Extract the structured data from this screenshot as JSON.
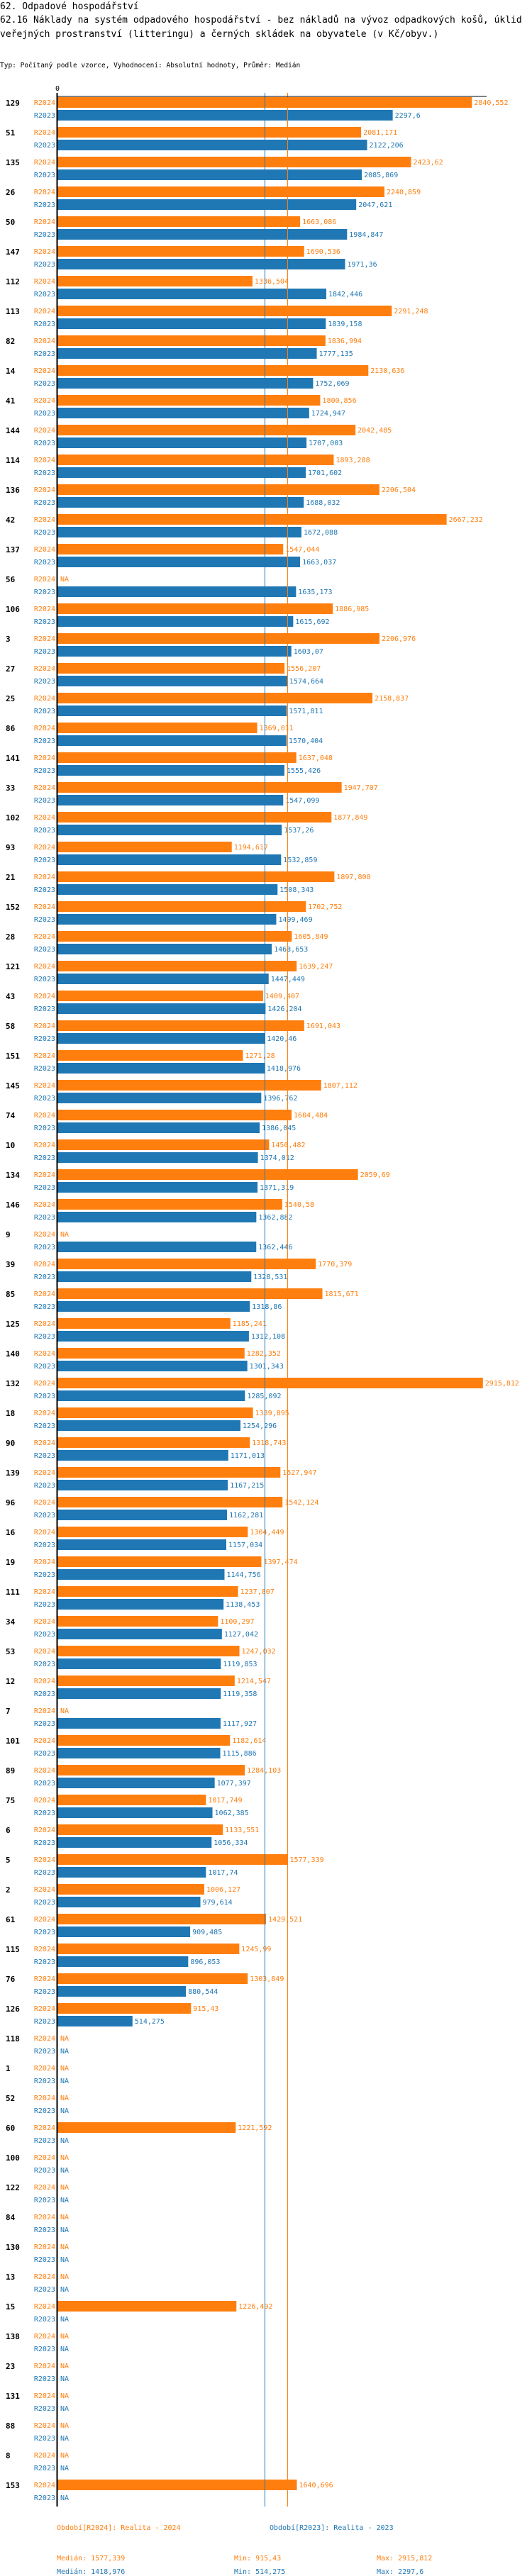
{
  "header": {
    "section": "62. Odpadové hospodářství",
    "title": "62.16 Náklady na systém odpadového hospodářství - bez nákladů na vývoz odpadkových košů, úklid veřejných prostranství (litteringu) a černých skládek na obyvatele (v Kč/obyv.)",
    "subtitle": "Typ: Počítaný podle vzorce, Vyhodnocení: Absolutní hodnoty, Průměr: Medián"
  },
  "colors": {
    "R2024": "#ff7f0e",
    "R2023": "#1f77b4",
    "axis": "#000000"
  },
  "chart_data": {
    "type": "bar",
    "orientation": "horizontal",
    "title": "62.16 Náklady na systém odpadového hospodářství - bez nákladů na vývoz odpadkových košů, úklid veřejných prostranství (litteringu) a černých skládek na obyvatele (v Kč/obyv.)",
    "xlabel": "",
    "ylabel": "",
    "axis_zero_label": "0",
    "xlim": [
      0,
      2915.812
    ],
    "grid": false,
    "na_label": "NA",
    "series_names": [
      "R2024",
      "R2023"
    ],
    "categories": [
      "129",
      "51",
      "135",
      "26",
      "50",
      "147",
      "112",
      "113",
      "82",
      "14",
      "41",
      "144",
      "114",
      "136",
      "42",
      "137",
      "56",
      "106",
      "3",
      "27",
      "25",
      "86",
      "141",
      "33",
      "102",
      "93",
      "21",
      "152",
      "28",
      "121",
      "43",
      "58",
      "151",
      "145",
      "74",
      "10",
      "134",
      "146",
      "9",
      "39",
      "85",
      "125",
      "140",
      "132",
      "18",
      "90",
      "139",
      "96",
      "16",
      "19",
      "111",
      "34",
      "53",
      "12",
      "7",
      "101",
      "89",
      "75",
      "6",
      "5",
      "2",
      "61",
      "115",
      "76",
      "126",
      "118",
      "1",
      "52",
      "60",
      "100",
      "122",
      "84",
      "130",
      "13",
      "15",
      "138",
      "23",
      "131",
      "88",
      "8",
      "153"
    ],
    "series": [
      {
        "name": "R2024",
        "values": [
          2840.552,
          2081.171,
          2423.62,
          2240.859,
          1663.086,
          1690.536,
          1336.504,
          2291.248,
          1836.994,
          2130.636,
          1800.856,
          2042.485,
          1893.288,
          2206.504,
          2667.232,
          1547.044,
          null,
          1886.985,
          2206.976,
          1556.207,
          2158.837,
          1369.011,
          1637.048,
          1947.707,
          1877.849,
          1194.617,
          1897.808,
          1702.752,
          1605.849,
          1639.247,
          1409.407,
          1691.043,
          1271.28,
          1807.112,
          1604.484,
          1450.482,
          2059.69,
          1540.58,
          null,
          1770.379,
          1815.671,
          1185.241,
          1282.352,
          2915.812,
          1339.895,
          1318.743,
          1527.947,
          1542.124,
          1304.449,
          1397.474,
          1237.807,
          1100.297,
          1247.032,
          1214.547,
          null,
          1182.614,
          1284.103,
          1017.749,
          1133.551,
          1577.339,
          1006.127,
          1429.521,
          1245.99,
          1303.849,
          915.43,
          null,
          null,
          null,
          1221.592,
          null,
          null,
          null,
          null,
          null,
          1226.492,
          null,
          null,
          null,
          null,
          null,
          1640.696
        ]
      },
      {
        "name": "R2023",
        "values": [
          2297.6,
          2122.206,
          2085.869,
          2047.621,
          1984.847,
          1971.36,
          1842.446,
          1839.158,
          1777.135,
          1752.069,
          1724.947,
          1707.003,
          1701.602,
          1688.032,
          1672.088,
          1663.037,
          1635.173,
          1615.692,
          1603.07,
          1574.664,
          1571.811,
          1570.404,
          1555.426,
          1547.099,
          1537.26,
          1532.859,
          1508.343,
          1499.469,
          1468.653,
          1447.449,
          1426.204,
          1420.46,
          1418.976,
          1396.762,
          1386.045,
          1374.012,
          1371.319,
          1362.882,
          1362.446,
          1328.531,
          1318.86,
          1312.108,
          1301.343,
          1285.092,
          1254.296,
          1171.013,
          1167.215,
          1162.281,
          1157.034,
          1144.756,
          1138.453,
          1127.042,
          1119.853,
          1119.358,
          1117.927,
          1115.886,
          1077.397,
          1062.385,
          1056.334,
          1017.74,
          979.614,
          909.485,
          896.053,
          880.544,
          514.275,
          null,
          null,
          null,
          null,
          null,
          null,
          null,
          null,
          null,
          null,
          null,
          null,
          null,
          null,
          null,
          null
        ]
      }
    ],
    "value_labels": {
      "R2024": [
        "2840,552",
        "2081,171",
        "2423,62",
        "2240,859",
        "1663,086",
        "1690,536",
        "1336,504",
        "2291,248",
        "1836,994",
        "2130,636",
        "1800,856",
        "2042,485",
        "1893,288",
        "2206,504",
        "2667,232",
        "1547,044",
        "NA",
        "1886,985",
        "2206,976",
        "1556,207",
        "2158,837",
        "1369,011",
        "1637,048",
        "1947,707",
        "1877,849",
        "1194,617",
        "1897,808",
        "1702,752",
        "1605,849",
        "1639,247",
        "1409,407",
        "1691,043",
        "1271,28",
        "1807,112",
        "1604,484",
        "1450,482",
        "2059,69",
        "1540,58",
        "NA",
        "1770,379",
        "1815,671",
        "1185,241",
        "1282,352",
        "2915,812",
        "1339,895",
        "1318,743",
        "1527,947",
        "1542,124",
        "1304,449",
        "1397,474",
        "1237,807",
        "1100,297",
        "1247,032",
        "1214,547",
        "NA",
        "1182,614",
        "1284,103",
        "1017,749",
        "1133,551",
        "1577,339",
        "1006,127",
        "1429,521",
        "1245,99",
        "1303,849",
        "915,43",
        "NA",
        "NA",
        "NA",
        "1221,592",
        "NA",
        "NA",
        "NA",
        "NA",
        "NA",
        "1226,492",
        "NA",
        "NA",
        "NA",
        "NA",
        "NA",
        "1640,696"
      ],
      "R2023": [
        "2297,6",
        "2122,206",
        "2085,869",
        "2047,621",
        "1984,847",
        "1971,36",
        "1842,446",
        "1839,158",
        "1777,135",
        "1752,069",
        "1724,947",
        "1707,003",
        "1701,602",
        "1688,032",
        "1672,088",
        "1663,037",
        "1635,173",
        "1615,692",
        "1603,07",
        "1574,664",
        "1571,811",
        "1570,404",
        "1555,426",
        "1547,099",
        "1537,26",
        "1532,859",
        "1508,343",
        "1499,469",
        "1468,653",
        "1447,449",
        "1426,204",
        "1420,46",
        "1418,976",
        "1396,762",
        "1386,045",
        "1374,012",
        "1371,319",
        "1362,882",
        "1362,446",
        "1328,531",
        "1318,86",
        "1312,108",
        "1301,343",
        "1285,092",
        "1254,296",
        "1171,013",
        "1167,215",
        "1162,281",
        "1157,034",
        "1144,756",
        "1138,453",
        "1127,042",
        "1119,853",
        "1119,358",
        "1117,927",
        "1115,886",
        "1077,397",
        "1062,385",
        "1056,334",
        "1017,74",
        "979,614",
        "909,485",
        "896,053",
        "880,544",
        "514,275",
        "NA",
        "NA",
        "NA",
        "NA",
        "NA",
        "NA",
        "NA",
        "NA",
        "NA",
        "NA",
        "NA",
        "NA",
        "NA",
        "NA",
        "NA",
        "NA"
      ]
    },
    "reference_lines": [
      {
        "series": "R2024",
        "kind": "median",
        "value": 1577.339
      },
      {
        "series": "R2023",
        "kind": "median",
        "value": 1418.976
      }
    ],
    "legend": {
      "placement": "bottom",
      "entries": [
        {
          "series": "R2024",
          "label": "Období[R2024]: Realita - 2024"
        },
        {
          "series": "R2023",
          "label": "Období[R2023]: Realita - 2023"
        }
      ]
    },
    "stats": {
      "R2024": {
        "median": "Medián: 1577,339",
        "min": "Min: 915,43",
        "max": "Max: 2915,812"
      },
      "R2023": {
        "median": "Medián: 1418,976",
        "min": "Min: 514,275",
        "max": "Max: 2297,6"
      }
    }
  }
}
